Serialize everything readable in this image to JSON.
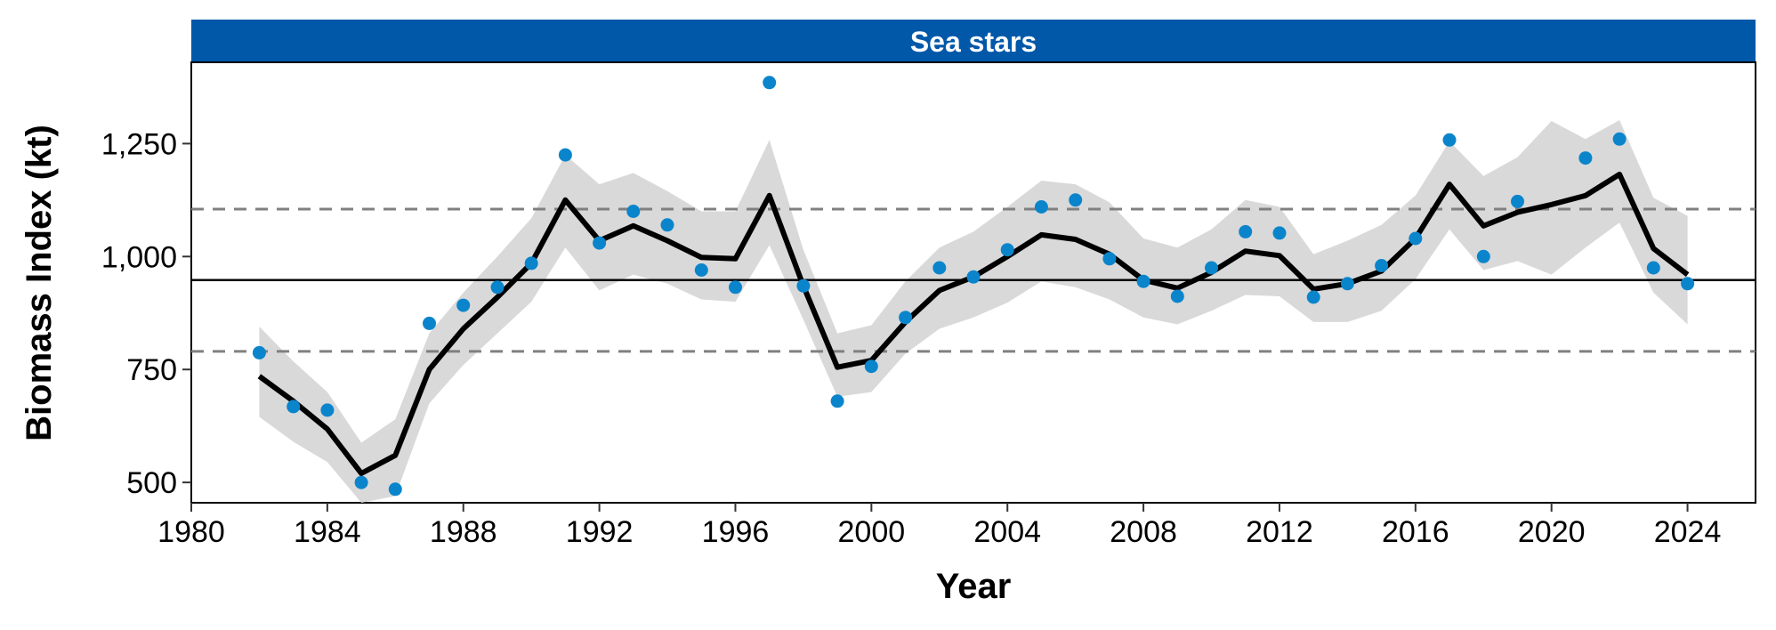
{
  "chart_data": {
    "type": "line",
    "title": "Sea stars",
    "xlabel": "Year",
    "ylabel": "Biomass Index (kt)",
    "xlim": [
      1980,
      2026
    ],
    "ylim": [
      455,
      1430
    ],
    "x_ticks": [
      1980,
      1984,
      1988,
      1992,
      1996,
      2000,
      2004,
      2008,
      2012,
      2016,
      2020,
      2024
    ],
    "x_tick_labels": [
      "1980",
      "1984",
      "1988",
      "1992",
      "1996",
      "2000",
      "2004",
      "2008",
      "2012",
      "2016",
      "2020",
      "2024"
    ],
    "y_ticks": [
      500,
      750,
      1000,
      1250
    ],
    "y_tick_labels": [
      "500",
      "750",
      "1,000",
      "1,250"
    ],
    "grid": false,
    "reference_lines": {
      "mean": 948,
      "upper_dashed": 1105,
      "lower_dashed": 790
    },
    "series": [
      {
        "kind": "points",
        "x": [
          1982,
          1983,
          1984,
          1985,
          1986,
          1987,
          1988,
          1989,
          1990,
          1991,
          1992,
          1993,
          1994,
          1995,
          1996,
          1997,
          1998,
          1999,
          2000,
          2001,
          2002,
          2003,
          2004,
          2005,
          2006,
          2007,
          2008,
          2009,
          2010,
          2011,
          2012,
          2013,
          2014,
          2015,
          2016,
          2017,
          2018,
          2019,
          2021,
          2022,
          2023,
          2024
        ],
        "values": [
          787,
          668,
          660,
          500,
          485,
          852,
          892,
          932,
          985,
          1225,
          1030,
          1100,
          1070,
          970,
          932,
          1385,
          935,
          680,
          757,
          865,
          975,
          955,
          1015,
          1110,
          1125,
          995,
          945,
          912,
          975,
          1055,
          1052,
          910,
          940,
          980,
          1040,
          1258,
          1000,
          1122,
          1218,
          1260,
          975,
          940
        ]
      },
      {
        "kind": "fitted",
        "x": [
          1982,
          1983,
          1984,
          1985,
          1986,
          1987,
          1988,
          1989,
          1990,
          1991,
          1992,
          1993,
          1994,
          1995,
          1996,
          1997,
          1998,
          1999,
          2000,
          2001,
          2002,
          2003,
          2004,
          2005,
          2006,
          2007,
          2008,
          2009,
          2010,
          2011,
          2012,
          2013,
          2014,
          2015,
          2016,
          2017,
          2018,
          2019,
          2020,
          2021,
          2022,
          2023,
          2024
        ],
        "values": [
          735,
          680,
          618,
          520,
          560,
          750,
          840,
          910,
          985,
          1125,
          1035,
          1068,
          1035,
          998,
          995,
          1135,
          935,
          755,
          770,
          855,
          925,
          955,
          1000,
          1048,
          1038,
          1005,
          948,
          930,
          965,
          1012,
          1002,
          928,
          940,
          968,
          1040,
          1160,
          1068,
          1098,
          1115,
          1135,
          1182,
          1018,
          960
        ],
        "lower": [
          645,
          590,
          545,
          455,
          470,
          675,
          760,
          830,
          900,
          1020,
          925,
          960,
          940,
          905,
          900,
          1025,
          860,
          690,
          700,
          785,
          840,
          865,
          898,
          945,
          932,
          905,
          865,
          850,
          880,
          915,
          912,
          855,
          855,
          880,
          950,
          1060,
          970,
          990,
          960,
          1020,
          1075,
          920,
          850
        ],
        "upper": [
          845,
          768,
          700,
          588,
          640,
          830,
          920,
          1000,
          1085,
          1225,
          1160,
          1185,
          1145,
          1100,
          1100,
          1258,
          1015,
          830,
          848,
          945,
          1020,
          1055,
          1110,
          1168,
          1160,
          1120,
          1040,
          1020,
          1060,
          1125,
          1110,
          1005,
          1035,
          1070,
          1135,
          1255,
          1178,
          1220,
          1300,
          1260,
          1302,
          1130,
          1090
        ]
      }
    ]
  }
}
